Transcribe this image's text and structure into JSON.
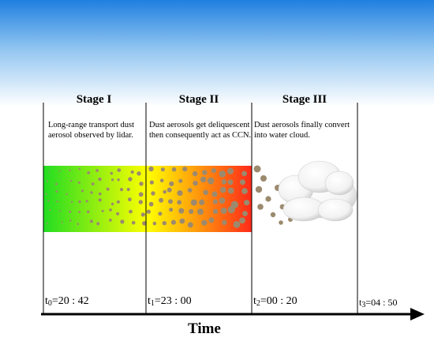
{
  "stages": [
    {
      "title": "Stage I",
      "description_lines": [
        "Long-range transport dust",
        "aerosol observed by lidar."
      ]
    },
    {
      "title": "Stage II",
      "description_lines": [
        "Dust aerosols get deliquescent",
        "then consequently act as CCN."
      ]
    },
    {
      "title": "Stage III",
      "description_lines": [
        "Dust aerosols finally convert",
        "into water cloud."
      ]
    }
  ],
  "time_points": [
    {
      "symbol": "t",
      "subscript": "0",
      "value": "=20 : 42"
    },
    {
      "symbol": "t",
      "subscript": "1",
      "value": "=23 : 00"
    },
    {
      "symbol": "t",
      "subscript": "2",
      "value": "=00 : 20"
    },
    {
      "symbol": "t",
      "subscript": "3",
      "value": "=04 : 50"
    }
  ],
  "axis": {
    "title": "Time"
  },
  "colors": {
    "sky_top": "#1f7fe0",
    "sky_bottom": "#ffffff",
    "gradient_start": "#22dd22",
    "gradient_mid": "#ffff00",
    "gradient_end": "#ff2a1a",
    "particle": "#9c8a6e",
    "line": "#000000"
  },
  "icons": [
    "dust-particle-icon",
    "cloud-icon",
    "arrow-head-icon"
  ]
}
